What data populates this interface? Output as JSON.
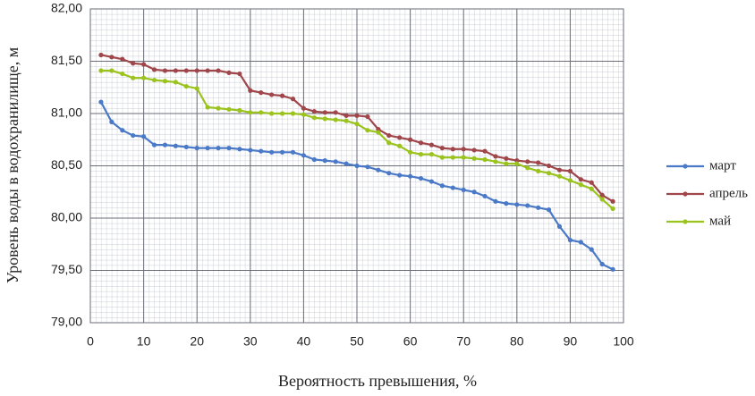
{
  "chart_data": {
    "type": "line",
    "x_label": "Вероятность превышения, %",
    "y_label": "Уровень воды в водохранилище, м",
    "x": [
      2,
      4,
      6,
      8,
      10,
      12,
      14,
      16,
      18,
      20,
      22,
      24,
      26,
      28,
      30,
      32,
      34,
      36,
      38,
      40,
      42,
      44,
      46,
      48,
      50,
      52,
      54,
      56,
      58,
      60,
      62,
      64,
      66,
      68,
      70,
      72,
      74,
      76,
      78,
      80,
      82,
      84,
      86,
      88,
      90,
      92,
      94,
      96,
      98
    ],
    "series": [
      {
        "name": "март",
        "color": "#4a79c8",
        "values": [
          81.11,
          80.92,
          80.84,
          80.79,
          80.78,
          80.7,
          80.7,
          80.69,
          80.68,
          80.67,
          80.67,
          80.67,
          80.67,
          80.66,
          80.65,
          80.64,
          80.63,
          80.63,
          80.63,
          80.6,
          80.56,
          80.55,
          80.54,
          80.52,
          80.5,
          80.49,
          80.46,
          80.43,
          80.41,
          80.4,
          80.38,
          80.35,
          80.31,
          80.29,
          80.27,
          80.25,
          80.21,
          80.16,
          80.14,
          80.13,
          80.12,
          80.1,
          80.08,
          79.92,
          79.79,
          79.77,
          79.7,
          79.56,
          79.51
        ]
      },
      {
        "name": "апрель",
        "color": "#a0464a",
        "values": [
          81.56,
          81.54,
          81.52,
          81.48,
          81.47,
          81.42,
          81.41,
          81.41,
          81.41,
          81.41,
          81.41,
          81.41,
          81.39,
          81.38,
          81.22,
          81.2,
          81.18,
          81.17,
          81.14,
          81.05,
          81.02,
          81.01,
          81.01,
          80.98,
          80.98,
          80.97,
          80.85,
          80.79,
          80.77,
          80.75,
          80.72,
          80.7,
          80.67,
          80.66,
          80.66,
          80.65,
          80.64,
          80.59,
          80.57,
          80.55,
          80.54,
          80.53,
          80.5,
          80.46,
          80.45,
          80.37,
          80.34,
          80.22,
          80.16
        ]
      },
      {
        "name": "май",
        "color": "#9bc31e",
        "values": [
          81.41,
          81.41,
          81.38,
          81.34,
          81.34,
          81.32,
          81.31,
          81.3,
          81.26,
          81.24,
          81.06,
          81.05,
          81.04,
          81.03,
          81.01,
          81.01,
          81.0,
          81.0,
          81.0,
          80.99,
          80.96,
          80.95,
          80.94,
          80.93,
          80.9,
          80.84,
          80.82,
          80.72,
          80.69,
          80.63,
          80.61,
          80.61,
          80.58,
          80.58,
          80.58,
          80.57,
          80.56,
          80.54,
          80.52,
          80.52,
          80.48,
          80.45,
          80.43,
          80.4,
          80.36,
          80.32,
          80.28,
          80.18,
          80.09
        ]
      }
    ],
    "xlim": [
      0,
      100
    ],
    "xticks": [
      0,
      10,
      20,
      30,
      40,
      50,
      60,
      70,
      80,
      90,
      100
    ],
    "ylim": [
      79,
      82
    ],
    "yticks": [
      {
        "value": 79,
        "label": "79,00"
      },
      {
        "value": 79.5,
        "label": "79,50"
      },
      {
        "value": 80,
        "label": "80,00"
      },
      {
        "value": 80.5,
        "label": "80,50"
      },
      {
        "value": 81,
        "label": "81,00"
      },
      {
        "value": 81.5,
        "label": "81,50"
      },
      {
        "value": 82,
        "label": "82,00"
      }
    ],
    "grid": true,
    "legend": "right"
  }
}
